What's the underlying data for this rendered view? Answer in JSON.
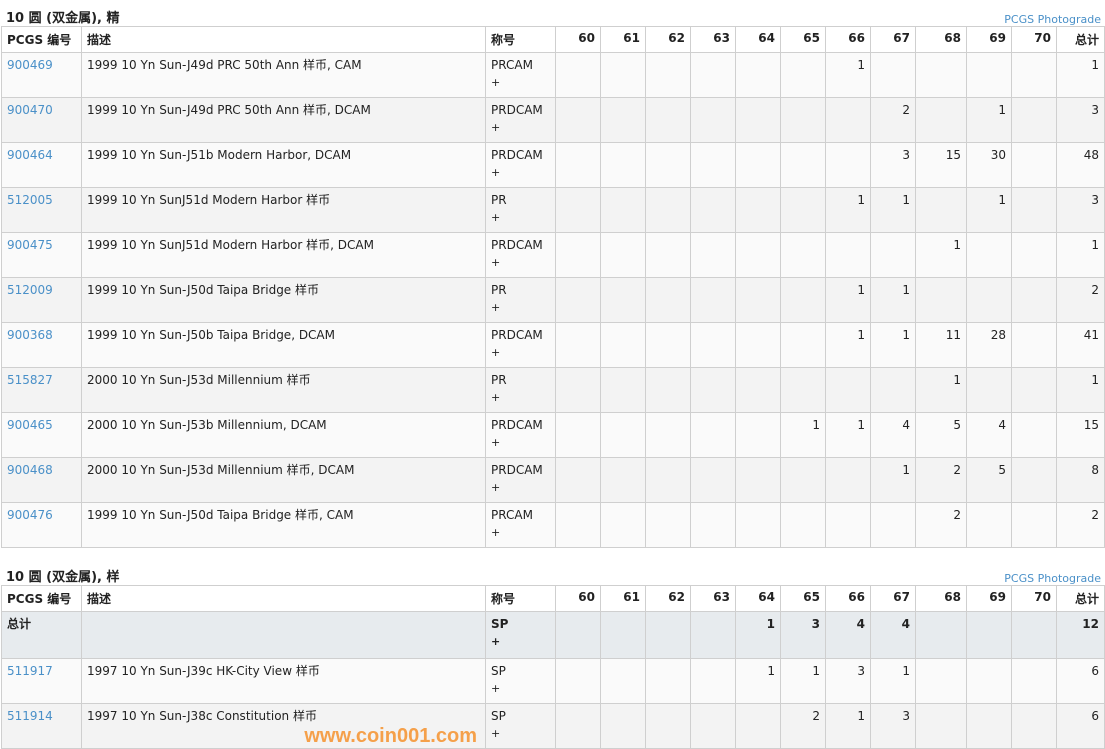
{
  "grade_headers": [
    "60",
    "61",
    "62",
    "63",
    "64",
    "65",
    "66",
    "67",
    "68",
    "69",
    "70"
  ],
  "col_id": "PCGS 编号",
  "col_desc": "描述",
  "col_des": "称号",
  "col_total": "总计",
  "sections": [
    {
      "title": "10 圆 (双金属), 精",
      "link": "PCGS Photograde",
      "rows": [
        {
          "id": "900469",
          "desc": "1999 10 Yn Sun-J49d PRC 50th Ann 样币, CAM",
          "designation": "PRCAM",
          "plus": "+",
          "counts": [
            "",
            "",
            "",
            "",
            "",
            "",
            "1",
            "",
            "",
            "",
            ""
          ],
          "total": "1"
        },
        {
          "id": "900470",
          "desc": "1999 10 Yn Sun-J49d PRC 50th Ann 样币, DCAM",
          "designation": "PRDCAM",
          "plus": "+",
          "counts": [
            "",
            "",
            "",
            "",
            "",
            "",
            "",
            "2",
            "",
            "1",
            ""
          ],
          "total": "3"
        },
        {
          "id": "900464",
          "desc": "1999 10 Yn Sun-J51b Modern Harbor, DCAM",
          "designation": "PRDCAM",
          "plus": "+",
          "counts": [
            "",
            "",
            "",
            "",
            "",
            "",
            "",
            "3",
            "15",
            "30",
            ""
          ],
          "total": "48"
        },
        {
          "id": "512005",
          "desc": "1999 10 Yn SunJ51d Modern Harbor 样币",
          "designation": "PR",
          "plus": "+",
          "counts": [
            "",
            "",
            "",
            "",
            "",
            "",
            "1",
            "1",
            "",
            "1",
            ""
          ],
          "total": "3"
        },
        {
          "id": "900475",
          "desc": "1999 10 Yn SunJ51d Modern Harbor 样币, DCAM",
          "designation": "PRDCAM",
          "plus": "+",
          "counts": [
            "",
            "",
            "",
            "",
            "",
            "",
            "",
            "",
            "1",
            "",
            ""
          ],
          "total": "1"
        },
        {
          "id": "512009",
          "desc": "1999 10 Yn Sun-J50d Taipa Bridge 样币",
          "designation": "PR",
          "plus": "+",
          "counts": [
            "",
            "",
            "",
            "",
            "",
            "",
            "1",
            "1",
            "",
            "",
            ""
          ],
          "total": "2"
        },
        {
          "id": "900368",
          "desc": "1999 10 Yn Sun-J50b Taipa Bridge, DCAM",
          "designation": "PRDCAM",
          "plus": "+",
          "counts": [
            "",
            "",
            "",
            "",
            "",
            "",
            "1",
            "1",
            "11",
            "28",
            ""
          ],
          "total": "41"
        },
        {
          "id": "515827",
          "desc": "2000 10 Yn Sun-J53d Millennium 样币",
          "designation": "PR",
          "plus": "+",
          "counts": [
            "",
            "",
            "",
            "",
            "",
            "",
            "",
            "",
            "1",
            "",
            ""
          ],
          "total": "1"
        },
        {
          "id": "900465",
          "desc": "2000 10 Yn Sun-J53b Millennium, DCAM",
          "designation": "PRDCAM",
          "plus": "+",
          "counts": [
            "",
            "",
            "",
            "",
            "",
            "1",
            "1",
            "4",
            "5",
            "4",
            ""
          ],
          "total": "15"
        },
        {
          "id": "900468",
          "desc": "2000 10 Yn Sun-J53d Millennium 样币, DCAM",
          "designation": "PRDCAM",
          "plus": "+",
          "counts": [
            "",
            "",
            "",
            "",
            "",
            "",
            "",
            "1",
            "2",
            "5",
            ""
          ],
          "total": "8"
        },
        {
          "id": "900476",
          "desc": "1999 10 Yn Sun-J50d Taipa Bridge 样币, CAM",
          "designation": "PRCAM",
          "plus": "+",
          "counts": [
            "",
            "",
            "",
            "",
            "",
            "",
            "",
            "",
            "2",
            "",
            ""
          ],
          "total": "2"
        }
      ]
    },
    {
      "title": "10 圆 (双金属), 样",
      "link": "PCGS Photograde",
      "total_row": {
        "label": "总计",
        "designation": "SP",
        "plus": "+",
        "counts": [
          "",
          "",
          "",
          "",
          "1",
          "3",
          "4",
          "4",
          "",
          "",
          ""
        ],
        "total": "12"
      },
      "rows": [
        {
          "id": "511917",
          "desc": "1997 10 Yn Sun-J39c HK-City View 样币",
          "designation": "SP",
          "plus": "+",
          "counts": [
            "",
            "",
            "",
            "",
            "1",
            "1",
            "3",
            "1",
            "",
            "",
            ""
          ],
          "total": "6"
        },
        {
          "id": "511914",
          "desc": "1997 10 Yn Sun-J38c Constitution 样币",
          "designation": "SP",
          "plus": "+",
          "counts": [
            "",
            "",
            "",
            "",
            "",
            "2",
            "1",
            "3",
            "",
            "",
            ""
          ],
          "total": "6"
        }
      ]
    }
  ],
  "watermark": "www.coin001.com",
  "colors": {
    "link": "#4a90c8",
    "total_row_bg": "#e7ebee",
    "watermark": "#f5a04a"
  }
}
